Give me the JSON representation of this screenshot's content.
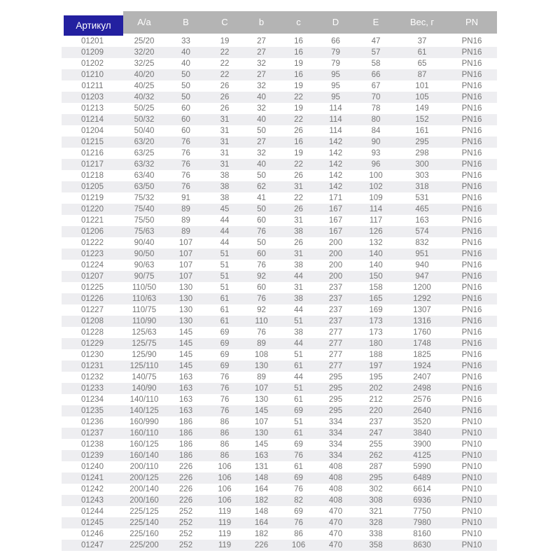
{
  "colors": {
    "accent_blue": "#2320a0",
    "header_gray": "#b4b4b4",
    "row_stripe": "#eeeef1",
    "data_text": "#757575",
    "header_text": "#ffffff"
  },
  "table": {
    "columns": {
      "artikul": "Артикул",
      "a_a": "A/a",
      "B": "B",
      "C": "C",
      "b": "b",
      "c": "c",
      "D": "D",
      "E": "E",
      "weight_g": "Вес, г",
      "pn": "PN"
    },
    "column_keys": [
      "artikul",
      "a-a",
      "B",
      "C",
      "b",
      "c",
      "D",
      "E",
      "weight-g",
      "pn"
    ],
    "rows": [
      [
        "01201",
        "25/20",
        "33",
        "19",
        "27",
        "16",
        "66",
        "47",
        "37",
        "PN16"
      ],
      [
        "01209",
        "32/20",
        "40",
        "22",
        "27",
        "16",
        "79",
        "57",
        "61",
        "PN16"
      ],
      [
        "01202",
        "32/25",
        "40",
        "22",
        "32",
        "19",
        "79",
        "58",
        "65",
        "PN16"
      ],
      [
        "01210",
        "40/20",
        "50",
        "22",
        "27",
        "16",
        "95",
        "66",
        "87",
        "PN16"
      ],
      [
        "01211",
        "40/25",
        "50",
        "26",
        "32",
        "19",
        "95",
        "67",
        "101",
        "PN16"
      ],
      [
        "01203",
        "40/32",
        "50",
        "26",
        "40",
        "22",
        "95",
        "70",
        "105",
        "PN16"
      ],
      [
        "01213",
        "50/25",
        "60",
        "26",
        "32",
        "19",
        "114",
        "78",
        "149",
        "PN16"
      ],
      [
        "01214",
        "50/32",
        "60",
        "31",
        "40",
        "22",
        "114",
        "80",
        "152",
        "PN16"
      ],
      [
        "01204",
        "50/40",
        "60",
        "31",
        "50",
        "26",
        "114",
        "84",
        "161",
        "PN16"
      ],
      [
        "01215",
        "63/20",
        "76",
        "31",
        "27",
        "16",
        "142",
        "90",
        "295",
        "PN16"
      ],
      [
        "01216",
        "63/25",
        "76",
        "31",
        "32",
        "19",
        "142",
        "93",
        "298",
        "PN16"
      ],
      [
        "01217",
        "63/32",
        "76",
        "31",
        "40",
        "22",
        "142",
        "96",
        "300",
        "PN16"
      ],
      [
        "01218",
        "63/40",
        "76",
        "38",
        "50",
        "26",
        "142",
        "100",
        "303",
        "PN16"
      ],
      [
        "01205",
        "63/50",
        "76",
        "38",
        "62",
        "31",
        "142",
        "102",
        "318",
        "PN16"
      ],
      [
        "01219",
        "75/32",
        "91",
        "38",
        "41",
        "22",
        "171",
        "109",
        "531",
        "PN16"
      ],
      [
        "01220",
        "75/40",
        "89",
        "45",
        "50",
        "26",
        "167",
        "114",
        "465",
        "PN16"
      ],
      [
        "01221",
        "75/50",
        "89",
        "44",
        "60",
        "31",
        "167",
        "117",
        "163",
        "PN16"
      ],
      [
        "01206",
        "75/63",
        "89",
        "44",
        "76",
        "38",
        "167",
        "126",
        "574",
        "PN16"
      ],
      [
        "01222",
        "90/40",
        "107",
        "44",
        "50",
        "26",
        "200",
        "132",
        "832",
        "PN16"
      ],
      [
        "01223",
        "90/50",
        "107",
        "51",
        "60",
        "31",
        "200",
        "140",
        "951",
        "PN16"
      ],
      [
        "01224",
        "90/63",
        "107",
        "51",
        "76",
        "38",
        "200",
        "140",
        "940",
        "PN16"
      ],
      [
        "01207",
        "90/75",
        "107",
        "51",
        "92",
        "44",
        "200",
        "150",
        "947",
        "PN16"
      ],
      [
        "01225",
        "110/50",
        "130",
        "51",
        "60",
        "31",
        "237",
        "158",
        "1200",
        "PN16"
      ],
      [
        "01226",
        "110/63",
        "130",
        "61",
        "76",
        "38",
        "237",
        "165",
        "1292",
        "PN16"
      ],
      [
        "01227",
        "110/75",
        "130",
        "61",
        "92",
        "44",
        "237",
        "169",
        "1307",
        "PN16"
      ],
      [
        "01208",
        "110/90",
        "130",
        "61",
        "110",
        "51",
        "237",
        "173",
        "1316",
        "PN16"
      ],
      [
        "01228",
        "125/63",
        "145",
        "69",
        "76",
        "38",
        "277",
        "173",
        "1760",
        "PN16"
      ],
      [
        "01229",
        "125/75",
        "145",
        "69",
        "89",
        "44",
        "277",
        "180",
        "1748",
        "PN16"
      ],
      [
        "01230",
        "125/90",
        "145",
        "69",
        "108",
        "51",
        "277",
        "188",
        "1825",
        "PN16"
      ],
      [
        "01231",
        "125/110",
        "145",
        "69",
        "130",
        "61",
        "277",
        "197",
        "1924",
        "PN16"
      ],
      [
        "01232",
        "140/75",
        "163",
        "76",
        "89",
        "44",
        "295",
        "195",
        "2407",
        "PN16"
      ],
      [
        "01233",
        "140/90",
        "163",
        "76",
        "107",
        "51",
        "295",
        "202",
        "2498",
        "PN16"
      ],
      [
        "01234",
        "140/110",
        "163",
        "76",
        "130",
        "61",
        "295",
        "212",
        "2576",
        "PN16"
      ],
      [
        "01235",
        "140/125",
        "163",
        "76",
        "145",
        "69",
        "295",
        "220",
        "2640",
        "PN16"
      ],
      [
        "01236",
        "160/990",
        "186",
        "86",
        "107",
        "51",
        "334",
        "237",
        "3520",
        "PN10"
      ],
      [
        "01237",
        "160/110",
        "186",
        "86",
        "130",
        "61",
        "334",
        "247",
        "3840",
        "PN10"
      ],
      [
        "01238",
        "160/125",
        "186",
        "86",
        "145",
        "69",
        "334",
        "255",
        "3900",
        "PN10"
      ],
      [
        "01239",
        "160/140",
        "186",
        "86",
        "163",
        "76",
        "334",
        "262",
        "4125",
        "PN10"
      ],
      [
        "01240",
        "200/110",
        "226",
        "106",
        "131",
        "61",
        "408",
        "287",
        "5990",
        "PN10"
      ],
      [
        "01241",
        "200/125",
        "226",
        "106",
        "148",
        "69",
        "408",
        "295",
        "6489",
        "PN10"
      ],
      [
        "01242",
        "200/140",
        "226",
        "106",
        "164",
        "76",
        "408",
        "302",
        "6614",
        "PN10"
      ],
      [
        "01243",
        "200/160",
        "226",
        "106",
        "182",
        "82",
        "408",
        "308",
        "6936",
        "PN10"
      ],
      [
        "01244",
        "225/125",
        "252",
        "119",
        "148",
        "69",
        "470",
        "321",
        "7750",
        "PN10"
      ],
      [
        "01245",
        "225/140",
        "252",
        "119",
        "164",
        "76",
        "470",
        "328",
        "7980",
        "PN10"
      ],
      [
        "01246",
        "225/160",
        "252",
        "119",
        "182",
        "86",
        "470",
        "338",
        "8160",
        "PN10"
      ],
      [
        "01247",
        "225/200",
        "252",
        "119",
        "226",
        "106",
        "470",
        "358",
        "8630",
        "PN10"
      ]
    ]
  }
}
